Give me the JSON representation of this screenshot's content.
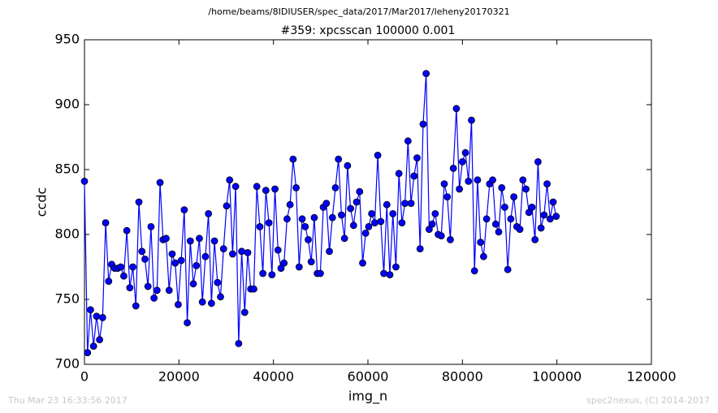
{
  "chart_data": {
    "type": "line",
    "suptitle": "/home/beams/8IDIUSER/spec_data/2017/Mar2017/leheny20170321",
    "title": "#359: xpcsscan 100000 0.001",
    "xlabel": "img_n",
    "ylabel": "ccdc",
    "footer_left": "Thu Mar 23 16:33:56 2017",
    "footer_right": "spec2nexus, (C) 2014-2017",
    "xlim": [
      0,
      120000
    ],
    "ylim": [
      700,
      950
    ],
    "xticks": [
      0,
      20000,
      40000,
      60000,
      80000,
      100000,
      120000
    ],
    "yticks": [
      700,
      750,
      800,
      850,
      900,
      950
    ],
    "x": [
      0,
      640,
      1280,
      1920,
      2560,
      3200,
      3840,
      4480,
      5120,
      5760,
      6400,
      7040,
      7680,
      8320,
      8960,
      9600,
      10240,
      10880,
      11520,
      12160,
      12800,
      13440,
      14080,
      14720,
      15360,
      16000,
      16640,
      17280,
      17920,
      18560,
      19200,
      19840,
      20480,
      21120,
      21760,
      22400,
      23040,
      23680,
      24320,
      24960,
      25600,
      26240,
      26880,
      27520,
      28160,
      28800,
      29440,
      30080,
      30720,
      31360,
      32000,
      32640,
      33280,
      33920,
      34560,
      35200,
      35840,
      36480,
      37120,
      37760,
      38400,
      39040,
      39680,
      40320,
      40960,
      41600,
      42240,
      42880,
      43520,
      44160,
      44800,
      45440,
      46080,
      46720,
      47360,
      48000,
      48640,
      49280,
      49920,
      50560,
      51200,
      51840,
      52480,
      53120,
      53760,
      54400,
      55040,
      55680,
      56320,
      56960,
      57600,
      58240,
      58880,
      59520,
      60160,
      60800,
      61440,
      62080,
      62720,
      63360,
      64000,
      64640,
      65280,
      65920,
      66560,
      67200,
      67840,
      68480,
      69120,
      69760,
      70400,
      71040,
      71680,
      72320,
      72960,
      73600,
      74240,
      74880,
      75520,
      76160,
      76800,
      77440,
      78080,
      78720,
      79360,
      80000,
      80640,
      81280,
      81920,
      82560,
      83200,
      83840,
      84480,
      85120,
      85760,
      86400,
      87040,
      87680,
      88320,
      88960,
      89600,
      90240,
      90880,
      91520,
      92160,
      92800,
      93440,
      94080,
      94720,
      95360,
      96000,
      96640,
      97280,
      97920,
      98560,
      99200,
      99840
    ],
    "series": [
      {
        "name": "ccdc",
        "color": "#0000ff",
        "values": [
          841,
          709,
          742,
          714,
          737,
          719,
          736,
          809,
          764,
          777,
          774,
          774,
          775,
          768,
          803,
          759,
          775,
          745,
          825,
          787,
          781,
          760,
          806,
          751,
          757,
          840,
          796,
          797,
          757,
          785,
          778,
          746,
          780,
          819,
          732,
          795,
          762,
          776,
          797,
          748,
          783,
          816,
          747,
          795,
          763,
          752,
          789,
          822,
          842,
          785,
          837,
          716,
          787,
          740,
          786,
          758,
          758,
          837,
          806,
          770,
          834,
          809,
          769,
          835,
          788,
          774,
          778,
          812,
          823,
          858,
          836,
          775,
          812,
          806,
          796,
          779,
          813,
          770,
          770,
          821,
          824,
          787,
          813,
          836,
          858,
          815,
          797,
          853,
          820,
          807,
          825,
          833,
          778,
          801,
          806,
          816,
          809,
          861,
          810,
          770,
          823,
          769,
          816,
          775,
          847,
          809,
          824,
          872,
          824,
          845,
          859,
          789,
          885,
          924,
          804,
          808,
          816,
          800,
          799,
          839,
          829,
          796,
          851,
          897,
          835,
          856,
          863,
          841,
          888,
          772,
          842,
          794,
          783,
          812,
          839,
          842,
          808,
          802,
          836,
          821,
          773,
          812,
          829,
          806,
          804,
          842,
          835,
          817,
          821,
          796,
          856,
          805,
          815,
          839,
          812,
          825,
          814
        ]
      }
    ]
  }
}
